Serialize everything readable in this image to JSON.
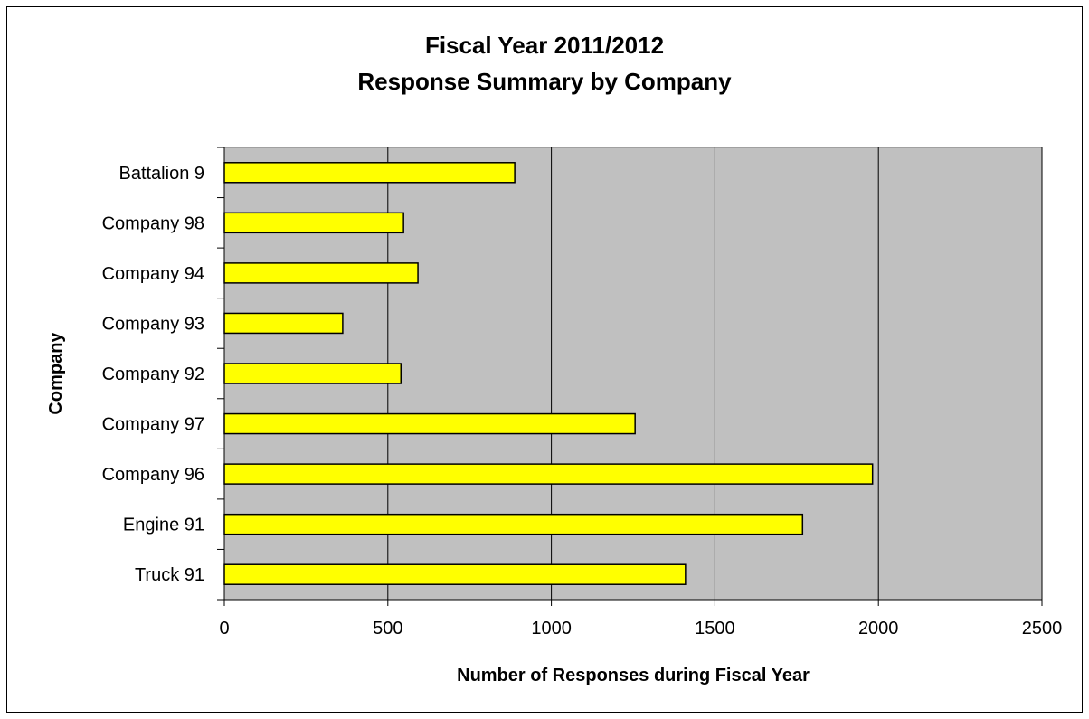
{
  "chart_data": {
    "type": "bar",
    "orientation": "horizontal",
    "title": [
      "Fiscal Year 2011/2012",
      "Response Summary by Company"
    ],
    "xlabel": "Number of Responses during Fiscal Year",
    "ylabel": "Company",
    "categories": [
      "Battalion 9",
      "Company 98",
      "Company 94",
      "Company 93",
      "Company 92",
      "Company 97",
      "Company 96",
      "Engine 91",
      "Truck 91"
    ],
    "values": [
      888,
      548,
      592,
      362,
      540,
      1256,
      1982,
      1768,
      1410
    ],
    "xlim": [
      0,
      2500
    ],
    "xticks": [
      "0",
      "500",
      "1000",
      "1500",
      "2000",
      "2500"
    ],
    "grid": "vertical major gridlines",
    "legend": "none",
    "colors": {
      "bar_fill": "#ffff00",
      "bar_stroke": "#000000",
      "plot_background": "#c0c0c0",
      "gridline": "#000000"
    }
  }
}
